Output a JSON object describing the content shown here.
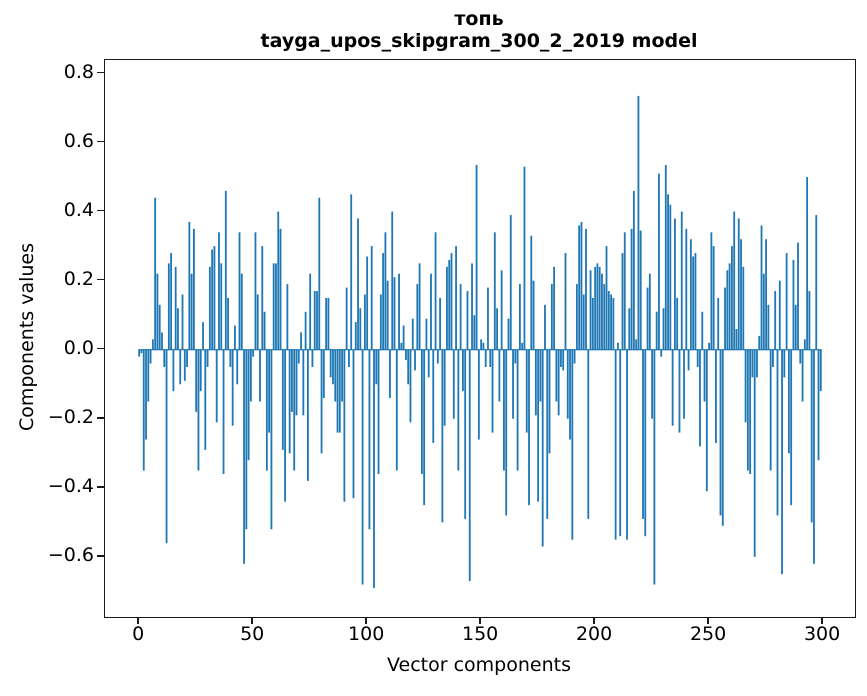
{
  "figure": {
    "title_line1": "топь",
    "title_line2": "tayga_upos_skipgram_300_2_2019 model",
    "xlabel": "Vector components",
    "ylabel": "Components values"
  },
  "chart_data": {
    "type": "bar",
    "title": "топь — tayga_upos_skipgram_300_2_2019 model",
    "xlabel": "Vector components",
    "ylabel": "Components values",
    "legend": "none",
    "grid": false,
    "bar_color": "#1f77b4",
    "axis_color": "#1a1a1a",
    "n_components": 300,
    "xlim": [
      -15,
      314
    ],
    "ylim": [
      -0.774,
      0.839
    ],
    "x_ticks": [
      0,
      50,
      100,
      150,
      200,
      250,
      300
    ],
    "x_tick_labels": [
      "0",
      "50",
      "100",
      "150",
      "200",
      "250",
      "300"
    ],
    "y_ticks": [
      0.8,
      0.6,
      0.4,
      0.2,
      0.0,
      -0.2,
      -0.4,
      -0.6
    ],
    "y_tick_labels": [
      "0.8",
      "0.6",
      "0.4",
      "0.2",
      "0.0",
      "−0.2",
      "−0.4",
      "−0.6"
    ],
    "values": [
      -0.02,
      -0.01,
      -0.35,
      -0.26,
      -0.15,
      -0.04,
      0.03,
      0.44,
      0.22,
      0.13,
      0.05,
      -0.05,
      -0.56,
      0.25,
      0.28,
      -0.12,
      0.24,
      0.12,
      -0.1,
      0.16,
      -0.09,
      -0.05,
      0.37,
      0.22,
      0.35,
      -0.18,
      -0.35,
      -0.12,
      0.08,
      -0.29,
      -0.05,
      0.24,
      0.29,
      0.3,
      -0.21,
      0.34,
      0.25,
      -0.36,
      0.46,
      0.15,
      -0.05,
      -0.22,
      0.07,
      -0.1,
      0.34,
      0.22,
      -0.62,
      -0.52,
      -0.32,
      -0.15,
      -0.02,
      0.34,
      0.16,
      -0.15,
      0.3,
      0.11,
      -0.35,
      -0.24,
      -0.52,
      0.25,
      0.25,
      0.4,
      0.35,
      -0.29,
      -0.44,
      0.19,
      -0.3,
      -0.18,
      -0.35,
      -0.19,
      -0.04,
      0.05,
      -0.19,
      0.11,
      -0.38,
      0.22,
      -0.05,
      0.17,
      0.17,
      0.44,
      -0.3,
      -0.14,
      0.15,
      0.15,
      -0.08,
      -0.1,
      -0.15,
      -0.24,
      -0.24,
      -0.15,
      -0.44,
      0.18,
      -0.05,
      0.45,
      -0.43,
      0.08,
      0.38,
      0.12,
      -0.68,
      0.16,
      0.27,
      -0.52,
      0.3,
      -0.69,
      -0.1,
      -0.36,
      0.16,
      0.28,
      0.34,
      0.2,
      -0.14,
      0.4,
      0.21,
      -0.35,
      0.22,
      0.02,
      0.07,
      -0.03,
      -0.1,
      -0.21,
      0.09,
      -0.06,
      0.19,
      0.25,
      -0.36,
      -0.45,
      0.09,
      -0.08,
      0.22,
      -0.27,
      0.34,
      -0.04,
      0.15,
      -0.5,
      -0.22,
      0.24,
      0.26,
      0.28,
      -0.2,
      0.3,
      -0.35,
      0.19,
      -0.12,
      -0.49,
      0.17,
      -0.67,
      0.25,
      0.1,
      0.535,
      -0.26,
      0.03,
      0.02,
      -0.05,
      0.18,
      -0.05,
      -0.24,
      0.34,
      0.12,
      -0.15,
      0.23,
      -0.35,
      -0.48,
      0.09,
      0.39,
      -0.2,
      -0.04,
      -0.35,
      0.19,
      0.02,
      0.53,
      -0.24,
      -0.45,
      0.33,
      0.2,
      -0.19,
      -0.44,
      -0.15,
      -0.57,
      0.13,
      -0.49,
      -0.3,
      0.19,
      0.24,
      -0.15,
      -0.19,
      -0.05,
      -0.06,
      0.28,
      -0.2,
      -0.26,
      -0.55,
      -0.04,
      0.19,
      0.36,
      0.37,
      0.16,
      0.35,
      -0.49,
      0.23,
      0.15,
      0.24,
      0.25,
      0.24,
      0.22,
      0.19,
      0.3,
      0.17,
      0.16,
      0.15,
      -0.55,
      0.02,
      -0.54,
      0.28,
      0.34,
      -0.55,
      0.12,
      0.35,
      0.46,
      0.03,
      0.735,
      0.345,
      -0.49,
      -0.54,
      0.18,
      0.22,
      -0.2,
      -0.68,
      0.11,
      0.51,
      -0.02,
      0.12,
      0.535,
      0.45,
      0.42,
      -0.22,
      0.38,
      0.15,
      -0.24,
      0.4,
      -0.2,
      0.35,
      -0.06,
      0.32,
      0.27,
      0.28,
      -0.05,
      -0.28,
      0.11,
      -0.15,
      -0.41,
      0.02,
      0.34,
      0.3,
      -0.27,
      0.15,
      -0.48,
      -0.51,
      0.18,
      0.23,
      0.25,
      0.3,
      0.4,
      0.06,
      0.38,
      0.32,
      0.24,
      -0.21,
      -0.35,
      -0.36,
      -0.08,
      -0.6,
      -0.08,
      0.04,
      0.36,
      0.22,
      0.32,
      0.13,
      -0.35,
      -0.05,
      0.17,
      -0.48,
      0.2,
      -0.65,
      -0.08,
      0.28,
      -0.3,
      -0.45,
      0.26,
      0.13,
      0.31,
      -0.04,
      -0.15,
      0.03,
      0.5,
      0.17,
      -0.5,
      -0.62,
      0.39,
      -0.32,
      -0.12
    ]
  }
}
